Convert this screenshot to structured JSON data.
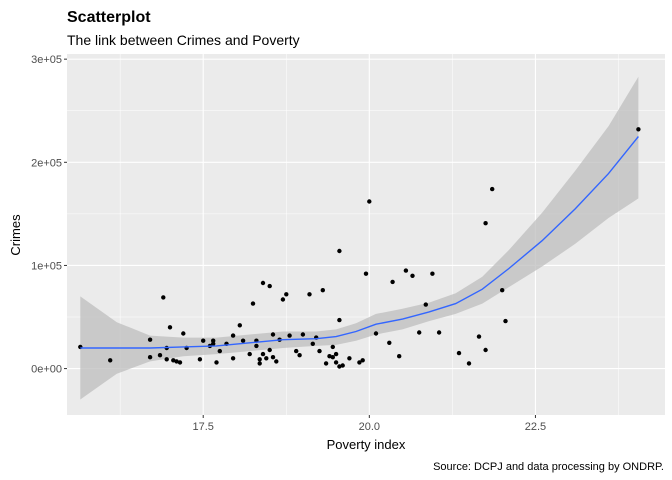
{
  "chart_data": {
    "type": "scatter",
    "title": "Scatterplot",
    "subtitle": "The link between Crimes and Poverty",
    "xlabel": "Poverty index",
    "ylabel": "Crimes",
    "caption": "Source: DCPJ and data processing by ONDRP.",
    "xlim": [
      15.45,
      24.45
    ],
    "ylim": [
      -45000,
      305000
    ],
    "x_ticks": [
      17.5,
      20.0,
      22.5
    ],
    "x_tick_labels": [
      "17.5",
      "20.0",
      "22.5"
    ],
    "y_ticks": [
      0,
      100000,
      200000,
      300000
    ],
    "y_tick_labels": [
      "0e+00",
      "1e+05",
      "2e+05",
      "3e+05"
    ],
    "grid": true,
    "colors": {
      "panel": "#ebebeb",
      "grid": "#ffffff",
      "points": "#000000",
      "smooth_line": "#3366ff",
      "confidence_band": "#bebebe"
    },
    "points": [
      [
        15.65,
        21000
      ],
      [
        16.1,
        8000
      ],
      [
        16.7,
        28000
      ],
      [
        16.7,
        11000
      ],
      [
        16.85,
        13000
      ],
      [
        16.9,
        69000
      ],
      [
        16.95,
        20000
      ],
      [
        16.95,
        9000
      ],
      [
        17.0,
        40000
      ],
      [
        17.05,
        8000
      ],
      [
        17.1,
        7000
      ],
      [
        17.15,
        6000
      ],
      [
        17.2,
        34000
      ],
      [
        17.25,
        20000
      ],
      [
        17.45,
        9000
      ],
      [
        17.5,
        27000
      ],
      [
        17.6,
        22000
      ],
      [
        17.65,
        27000
      ],
      [
        17.65,
        24000
      ],
      [
        17.7,
        6000
      ],
      [
        17.75,
        17000
      ],
      [
        17.85,
        24000
      ],
      [
        17.95,
        10000
      ],
      [
        17.95,
        32000
      ],
      [
        18.05,
        42000
      ],
      [
        18.1,
        27000
      ],
      [
        18.2,
        14000
      ],
      [
        18.25,
        63000
      ],
      [
        18.3,
        22000
      ],
      [
        18.3,
        27000
      ],
      [
        18.35,
        9000
      ],
      [
        18.35,
        5000
      ],
      [
        18.4,
        14000
      ],
      [
        18.4,
        83000
      ],
      [
        18.45,
        10000
      ],
      [
        18.5,
        80000
      ],
      [
        18.5,
        18000
      ],
      [
        18.55,
        33000
      ],
      [
        18.55,
        11000
      ],
      [
        18.6,
        7000
      ],
      [
        18.65,
        28000
      ],
      [
        18.7,
        67000
      ],
      [
        18.75,
        72000
      ],
      [
        18.8,
        32000
      ],
      [
        18.9,
        17000
      ],
      [
        18.95,
        13000
      ],
      [
        19.0,
        33000
      ],
      [
        19.1,
        72000
      ],
      [
        19.15,
        24000
      ],
      [
        19.2,
        30000
      ],
      [
        19.25,
        17000
      ],
      [
        19.3,
        76000
      ],
      [
        19.35,
        5000
      ],
      [
        19.4,
        12000
      ],
      [
        19.45,
        11000
      ],
      [
        19.45,
        21000
      ],
      [
        19.5,
        14000
      ],
      [
        19.5,
        6000
      ],
      [
        19.55,
        47000
      ],
      [
        19.55,
        114000
      ],
      [
        19.55,
        2000
      ],
      [
        19.6,
        3000
      ],
      [
        19.7,
        10000
      ],
      [
        19.85,
        6000
      ],
      [
        19.9,
        8000
      ],
      [
        19.95,
        92000
      ],
      [
        20.0,
        162000
      ],
      [
        20.1,
        34000
      ],
      [
        20.3,
        25000
      ],
      [
        20.35,
        84000
      ],
      [
        20.45,
        12000
      ],
      [
        20.55,
        95000
      ],
      [
        20.65,
        90000
      ],
      [
        20.75,
        35000
      ],
      [
        20.85,
        62000
      ],
      [
        20.95,
        92000
      ],
      [
        21.05,
        35000
      ],
      [
        21.35,
        15000
      ],
      [
        21.5,
        5000
      ],
      [
        21.65,
        31000
      ],
      [
        21.75,
        141000
      ],
      [
        21.75,
        18000
      ],
      [
        21.85,
        174000
      ],
      [
        22.0,
        76000
      ],
      [
        22.05,
        46000
      ],
      [
        24.05,
        232000
      ]
    ],
    "smooth_line": {
      "x": [
        15.65,
        16.2,
        16.7,
        17.2,
        17.7,
        18.2,
        18.7,
        19.2,
        19.5,
        19.8,
        20.1,
        20.5,
        20.9,
        21.3,
        21.7,
        22.1,
        22.6,
        23.1,
        23.6,
        24.05
      ],
      "y": [
        20000,
        20000,
        20000,
        21000,
        22000,
        25000,
        28000,
        29000,
        31000,
        36000,
        43000,
        48000,
        55000,
        63000,
        77000,
        97000,
        124000,
        155000,
        189000,
        225000
      ],
      "lower": [
        -30000,
        -5000,
        7000,
        12000,
        14000,
        17000,
        20000,
        22000,
        23000,
        27000,
        33000,
        38000,
        46000,
        53000,
        63000,
        79000,
        99000,
        121000,
        146000,
        165000
      ],
      "upper": [
        70000,
        45000,
        32000,
        30000,
        30000,
        33000,
        36000,
        36000,
        38000,
        44000,
        53000,
        58000,
        64000,
        73000,
        89000,
        115000,
        151000,
        192000,
        235000,
        283000
      ]
    }
  }
}
